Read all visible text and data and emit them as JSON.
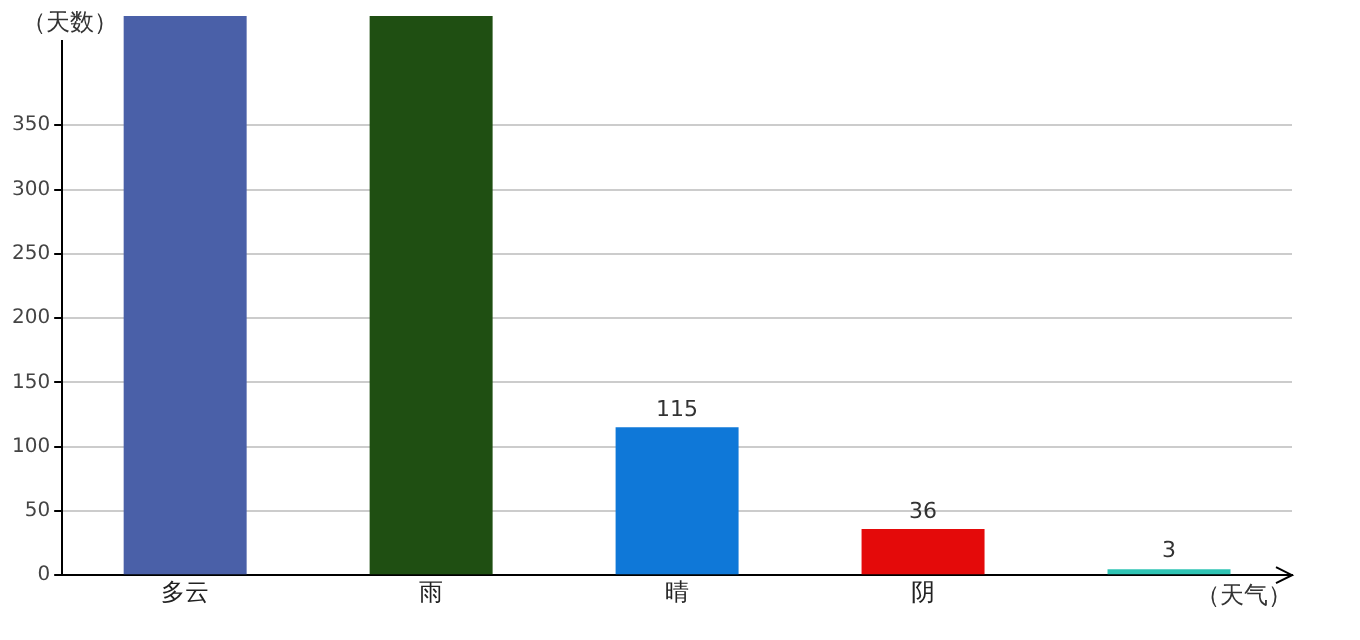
{
  "chart_data": {
    "type": "bar",
    "xlabel": "（天气）",
    "ylabel": "（天数）",
    "categories": [
      "多云",
      "雨",
      "晴",
      "阴",
      null
    ],
    "values": [
      435,
      435,
      115,
      36,
      3
    ],
    "value_labels": [
      null,
      null,
      "115",
      "36",
      "3"
    ],
    "colors": [
      "#4a60a8",
      "#1f4f12",
      "#0f78d8",
      "#e40a0a",
      "#2fc4b4"
    ],
    "ylim": [
      0,
      435
    ],
    "yticks": [
      0,
      50,
      100,
      150,
      200,
      250,
      300,
      350
    ],
    "grid": "y",
    "legend": false
  }
}
